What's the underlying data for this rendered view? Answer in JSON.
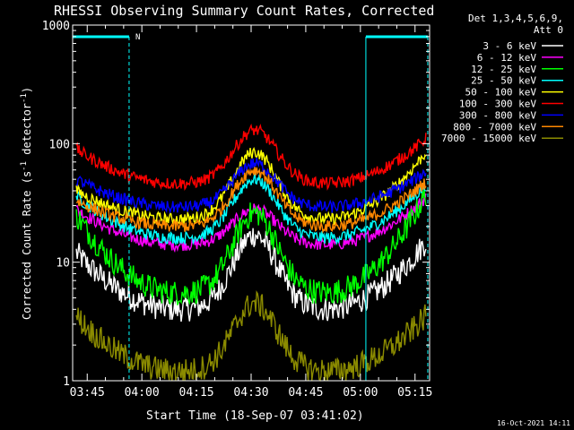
{
  "chart_data": {
    "type": "line",
    "title": "RHESSI Observing Summary Count Rates, Corrected",
    "xlabel": "Start Time (18-Sep-07 03:41:02)",
    "ylabel_main": "Corrected Count Rate (s",
    "ylabel_sup1": "-1",
    "ylabel_mid": " detector",
    "ylabel_sup2": "-1",
    "ylabel_end": ")",
    "y_scale": "log",
    "ylim": [
      1,
      1000
    ],
    "y_ticks": [
      {
        "value": 1,
        "label": "1"
      },
      {
        "value": 10,
        "label": "10"
      },
      {
        "value": 100,
        "label": "100"
      },
      {
        "value": 1000,
        "label": "1000"
      }
    ],
    "x_unit": "minutes",
    "xlim": [
      221,
      319
    ],
    "x_ticks": [
      {
        "value": 225,
        "label": "03:45"
      },
      {
        "value": 240,
        "label": "04:00"
      },
      {
        "value": 255,
        "label": "04:15"
      },
      {
        "value": 270,
        "label": "04:30"
      },
      {
        "value": 285,
        "label": "04:45"
      },
      {
        "value": 300,
        "label": "05:00"
      },
      {
        "value": 315,
        "label": "05:15"
      }
    ],
    "legend": {
      "placement": "right",
      "header_line1": "Det 1,3,4,5,6,9,",
      "header_line2": "Att 0"
    },
    "night_intervals": [
      [
        221,
        236.5
      ],
      [
        301.5,
        318.5
      ]
    ],
    "night_marker_label": "N",
    "saa_label": "",
    "series": [
      {
        "name": "3 - 6 keV",
        "color": "#ffffff",
        "base": 4.0,
        "peak": 17,
        "start": 12,
        "end": 15
      },
      {
        "name": "6 - 12 keV",
        "color": "#ff00ff",
        "base": 14,
        "peak": 28,
        "start": 28,
        "end": 35
      },
      {
        "name": "12 - 25 keV",
        "color": "#00ff00",
        "base": 5.5,
        "peak": 26,
        "start": 25,
        "end": 38
      },
      {
        "name": "25 - 50 keV",
        "color": "#00ffff",
        "base": 16,
        "peak": 50,
        "start": 36,
        "end": 45
      },
      {
        "name": "50 - 100 keV",
        "color": "#ffff00",
        "base": 23,
        "peak": 85,
        "start": 40,
        "end": 85
      },
      {
        "name": "100 - 300 keV",
        "color": "#ff0000",
        "base": 46,
        "peak": 130,
        "start": 90,
        "end": 110
      },
      {
        "name": "300 - 800 keV",
        "color": "#0000ff",
        "base": 29,
        "peak": 68,
        "start": 50,
        "end": 58
      },
      {
        "name": "800 - 7000 keV",
        "color": "#ff8800",
        "base": 20,
        "peak": 60,
        "start": 33,
        "end": 48
      },
      {
        "name": "7000 - 15000 keV",
        "color": "#8b8b00",
        "base": 1.2,
        "peak": 4.5,
        "start": 3.5,
        "end": 3.5
      }
    ],
    "peak_time": 271,
    "footer_timestamp": "16-Oct-2021 14:11"
  }
}
